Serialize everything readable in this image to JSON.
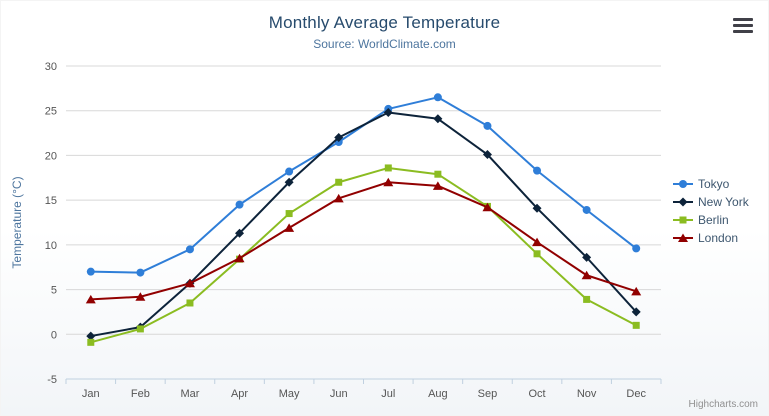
{
  "chart": {
    "title": "Monthly Average Temperature",
    "subtitle": "Source: WorldClimate.com",
    "y_axis_title": "Temperature (°C)",
    "credit": "Highcharts.com",
    "export_menu_icon": "hamburger-menu"
  },
  "chart_data": {
    "type": "line",
    "categories": [
      "Jan",
      "Feb",
      "Mar",
      "Apr",
      "May",
      "Jun",
      "Jul",
      "Aug",
      "Sep",
      "Oct",
      "Nov",
      "Dec"
    ],
    "series": [
      {
        "name": "Tokyo",
        "color": "#2f7ed8",
        "marker": "circle",
        "values": [
          7.0,
          6.9,
          9.5,
          14.5,
          18.2,
          21.5,
          25.2,
          26.5,
          23.3,
          18.3,
          13.9,
          9.6
        ]
      },
      {
        "name": "New York",
        "color": "#0d233a",
        "marker": "diamond",
        "values": [
          -0.2,
          0.8,
          5.7,
          11.3,
          17.0,
          22.0,
          24.8,
          24.1,
          20.1,
          14.1,
          8.6,
          2.5
        ]
      },
      {
        "name": "Berlin",
        "color": "#8bbc21",
        "marker": "square",
        "values": [
          -0.9,
          0.6,
          3.5,
          8.4,
          13.5,
          17.0,
          18.6,
          17.9,
          14.3,
          9.0,
          3.9,
          1.0
        ]
      },
      {
        "name": "London",
        "color": "#910000",
        "marker": "triangle",
        "values": [
          3.9,
          4.2,
          5.7,
          8.5,
          11.9,
          15.2,
          17.0,
          16.6,
          14.2,
          10.3,
          6.6,
          4.8
        ]
      }
    ],
    "ylim": [
      -5,
      30
    ],
    "y_ticks": [
      -5,
      0,
      5,
      10,
      15,
      20,
      25,
      30
    ],
    "grid": true,
    "legend_position": "right",
    "grid_color": "#d8d8d8",
    "axis_line_color": "#c0d0e0"
  }
}
